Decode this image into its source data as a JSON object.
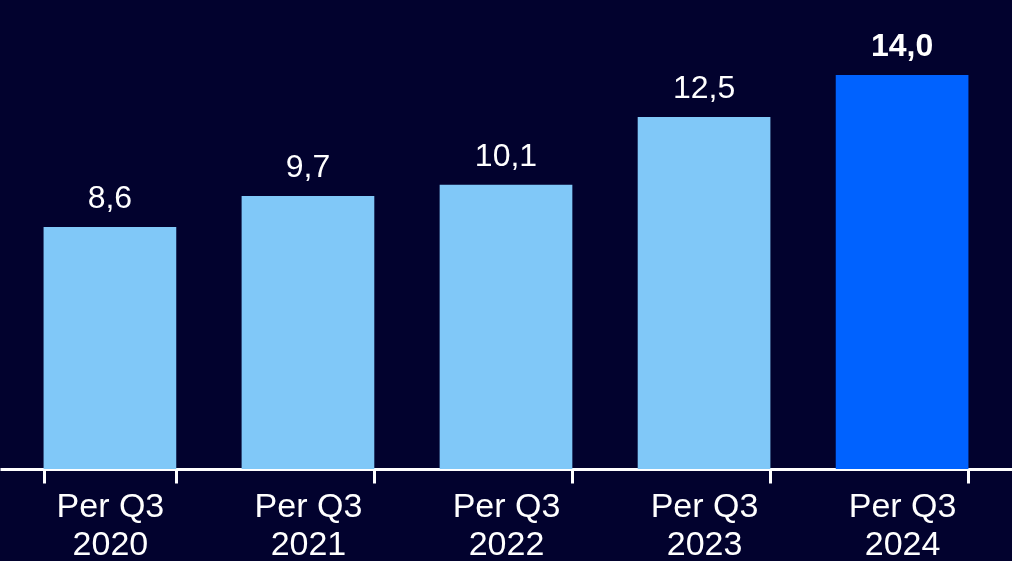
{
  "chart_data": {
    "type": "bar",
    "categories": [
      "Per Q3 2020",
      "Per Q3 2021",
      "Per Q3 2022",
      "Per Q3 2023",
      "Per Q3 2024"
    ],
    "values": [
      8.6,
      9.7,
      10.1,
      12.5,
      14.0
    ],
    "value_labels": [
      "8,6",
      "9,7",
      "10,1",
      "12,5",
      "14,0"
    ],
    "colors": [
      "#80c8f8",
      "#80c8f8",
      "#80c8f8",
      "#80c8f8",
      "#0062ff"
    ]
  }
}
